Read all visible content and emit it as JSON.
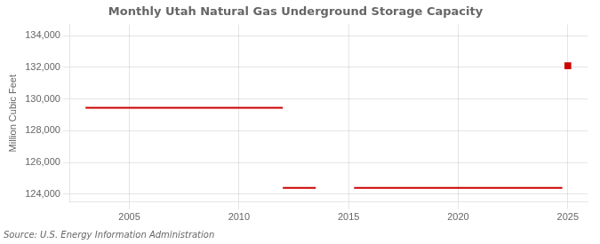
{
  "chart_data": {
    "type": "line",
    "title": "Monthly Utah Natural Gas Underground Storage Capacity",
    "ylabel": "Million Cubic Feet",
    "annotation": "Source: U.S. Energy Information Administration",
    "color": "#cc0000",
    "grid": true,
    "xlim": [
      2002.3,
      2025.9
    ],
    "xticks": [
      2005,
      2010,
      2015,
      2020,
      2025
    ],
    "ylim": [
      123500,
      134700
    ],
    "yticks": [
      {
        "value": 124000,
        "label": "124,000"
      },
      {
        "value": 126000,
        "label": "126,000"
      },
      {
        "value": 128000,
        "label": "128,000"
      },
      {
        "value": 130000,
        "label": "130,000"
      },
      {
        "value": 132000,
        "label": "132,000"
      },
      {
        "value": 134000,
        "label": "134,000"
      }
    ],
    "series": [
      {
        "type": "line",
        "x": [
          2003.0,
          2012.0
        ],
        "values": [
          129450,
          129450
        ]
      },
      {
        "type": "line",
        "x": [
          2012.0,
          2013.5
        ],
        "values": [
          124400,
          124400
        ]
      },
      {
        "type": "line",
        "x": [
          2015.25,
          2024.75
        ],
        "values": [
          124400,
          124400
        ]
      },
      {
        "type": "scatter",
        "marker": "square",
        "x": [
          2025.0
        ],
        "values": [
          132100
        ]
      }
    ]
  }
}
